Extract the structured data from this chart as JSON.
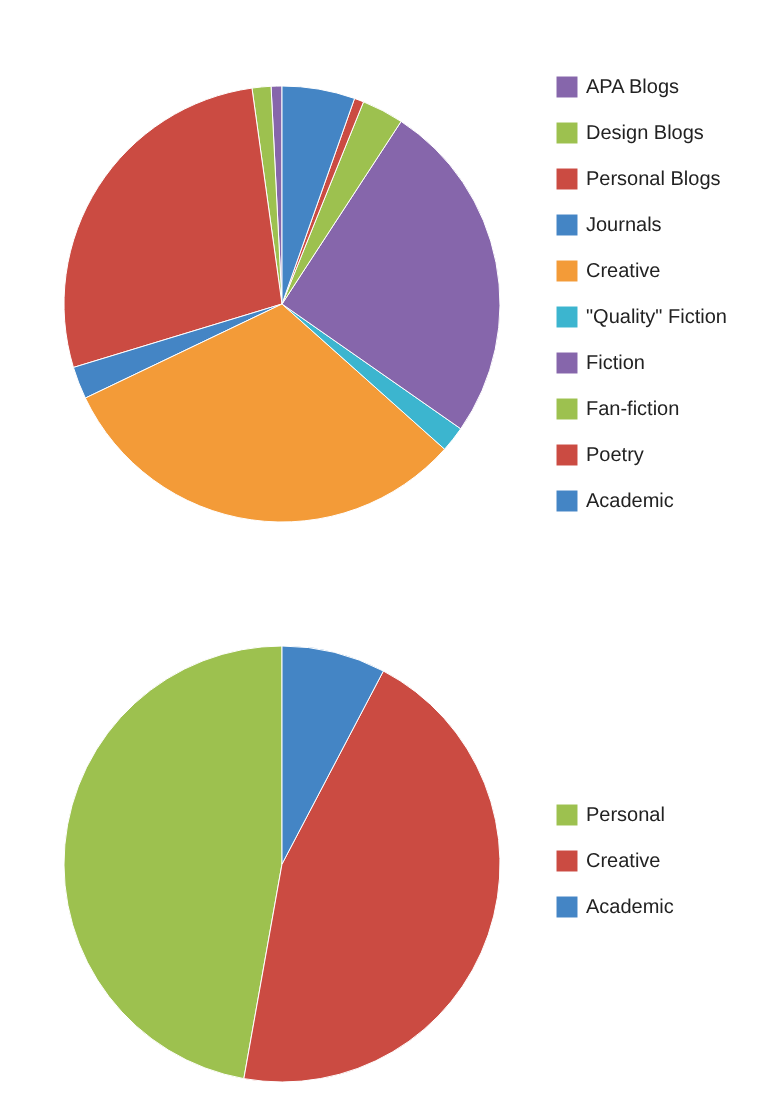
{
  "chart_data": [
    {
      "type": "pie",
      "categories": [
        "APA Blogs",
        "Design Blogs",
        "Personal Blogs",
        "Journals",
        "Creative",
        "\"Quality\" Fiction",
        "Fiction",
        "Fan-fiction",
        "Poetry",
        "Academic"
      ],
      "values": [
        0.8,
        1.4,
        27.5,
        2.4,
        31.3,
        1.9,
        25.5,
        3.1,
        0.7,
        5.4
      ],
      "colors": [
        "#8666ab",
        "#9dc14f",
        "#cb4b42",
        "#4485c5",
        "#f39b38",
        "#3cb5cf",
        "#8666ab",
        "#9dc14f",
        "#cb4b42",
        "#4485c5"
      ],
      "legend": "right"
    },
    {
      "type": "pie",
      "categories": [
        "Personal",
        "Creative",
        "Academic"
      ],
      "values": [
        47.2,
        45.1,
        7.7
      ],
      "colors": [
        "#9dc14f",
        "#cb4b42",
        "#4485c5"
      ],
      "legend": "right"
    }
  ]
}
